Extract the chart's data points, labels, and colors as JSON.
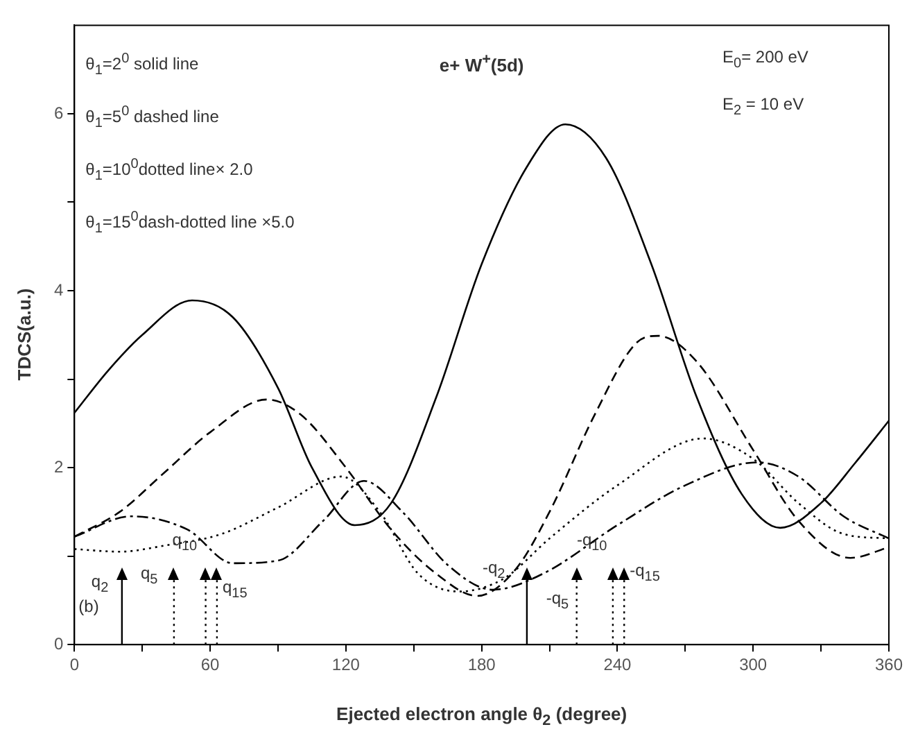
{
  "chart_data": {
    "type": "line",
    "title": "e+ W$^{+}$(5d)",
    "xlabel": "Ejected electron angle θ$_{2}$ (degree)",
    "ylabel": "TDCS(a.u.)",
    "xlim": [
      0,
      360
    ],
    "xticks": [
      0,
      {
        "value": 30,
        "label": null
      },
      60,
      {
        "value": 90,
        "label": null
      },
      120,
      {
        "value": 150,
        "label": null
      },
      180,
      {
        "value": 210,
        "label": null
      },
      240,
      {
        "value": 270,
        "label": null
      },
      300,
      {
        "value": 330,
        "label": null
      },
      360
    ],
    "ylim": [
      0,
      7
    ],
    "yticks": [
      0,
      {
        "value": 1,
        "label": null
      },
      2,
      {
        "value": 3,
        "label": null
      },
      4,
      {
        "value": 5,
        "label": null
      },
      6
    ],
    "grid": false,
    "legend": false,
    "marker": "none",
    "series": [
      {
        "color": "#000000",
        "line_style": "solid",
        "x": [
          0,
          15,
          30,
          52,
          70,
          90,
          105,
          124,
          140,
          160,
          180,
          200,
          217,
          235,
          255,
          275,
          295,
          312,
          330,
          345,
          360
        ],
        "values": [
          2.62,
          3.1,
          3.5,
          3.89,
          3.7,
          2.9,
          2.0,
          1.35,
          1.6,
          2.8,
          4.3,
          5.4,
          5.88,
          5.5,
          4.3,
          2.8,
          1.7,
          1.32,
          1.6,
          2.05,
          2.53
        ]
      },
      {
        "color": "#000000",
        "line_style": "dashed",
        "x": [
          0,
          20,
          40,
          60,
          85,
          100,
          120,
          140,
          160,
          178,
          195,
          210,
          230,
          248,
          258,
          275,
          300,
          320,
          343,
          360
        ],
        "values": [
          1.22,
          1.5,
          1.95,
          2.4,
          2.77,
          2.6,
          2.0,
          1.3,
          0.8,
          0.55,
          0.85,
          1.5,
          2.6,
          3.4,
          3.49,
          3.2,
          2.2,
          1.4,
          0.98,
          1.1
        ]
      },
      {
        "color": "#000000",
        "line_style": "dotted",
        "x": [
          0,
          20,
          40,
          65,
          90,
          118,
          135,
          152,
          170,
          190,
          210,
          240,
          278,
          300,
          320,
          340,
          360
        ],
        "values": [
          1.08,
          1.05,
          1.12,
          1.25,
          1.55,
          1.9,
          1.5,
          0.8,
          0.6,
          0.75,
          1.2,
          1.8,
          2.33,
          2.1,
          1.6,
          1.25,
          1.2
        ]
      },
      {
        "color": "#000000",
        "line_style": "dashdot",
        "x": [
          0,
          25,
          50,
          70,
          90,
          110,
          128,
          145,
          165,
          185,
          207,
          240,
          270,
          302,
          320,
          340,
          360
        ],
        "values": [
          1.22,
          1.45,
          1.3,
          0.92,
          0.95,
          1.4,
          1.85,
          1.5,
          0.9,
          0.62,
          0.8,
          1.35,
          1.8,
          2.06,
          1.9,
          1.45,
          1.2
        ]
      }
    ],
    "annotations": [
      "θ$_{1}$=2$^{0}$ solid line",
      "θ$_{1}$=5$^{0}$ dashed line",
      "θ$_{1}$=10$^{0}$dotted line× 2.0",
      "θ$_{1}$=15$^{0}$dash-dotted line ×5.0",
      "E$_{0}$= 200 eV",
      "E$_{2}$ = 10 eV",
      "(b)"
    ],
    "ref_lines": [
      {
        "axis": "x",
        "value": 21,
        "label": "q$_{2}$",
        "line_style": "solid"
      },
      {
        "axis": "x",
        "value": 44,
        "label": "q$_{5}$",
        "line_style": "dotted"
      },
      {
        "axis": "x",
        "value": 58,
        "label": "q$_{10}$",
        "line_style": "dotted"
      },
      {
        "axis": "x",
        "value": 63,
        "label": "q$_{15}$",
        "line_style": "dotted"
      },
      {
        "axis": "x",
        "value": 200,
        "label": "-q$_{2}$",
        "line_style": "solid"
      },
      {
        "axis": "x",
        "value": 222,
        "label": "-q$_{5}$",
        "line_style": "dotted"
      },
      {
        "axis": "x",
        "value": 238,
        "label": "-q$_{10}$",
        "line_style": "dotted"
      },
      {
        "axis": "x",
        "value": 243,
        "label": "-q$_{15}$",
        "line_style": "dotted"
      }
    ]
  }
}
